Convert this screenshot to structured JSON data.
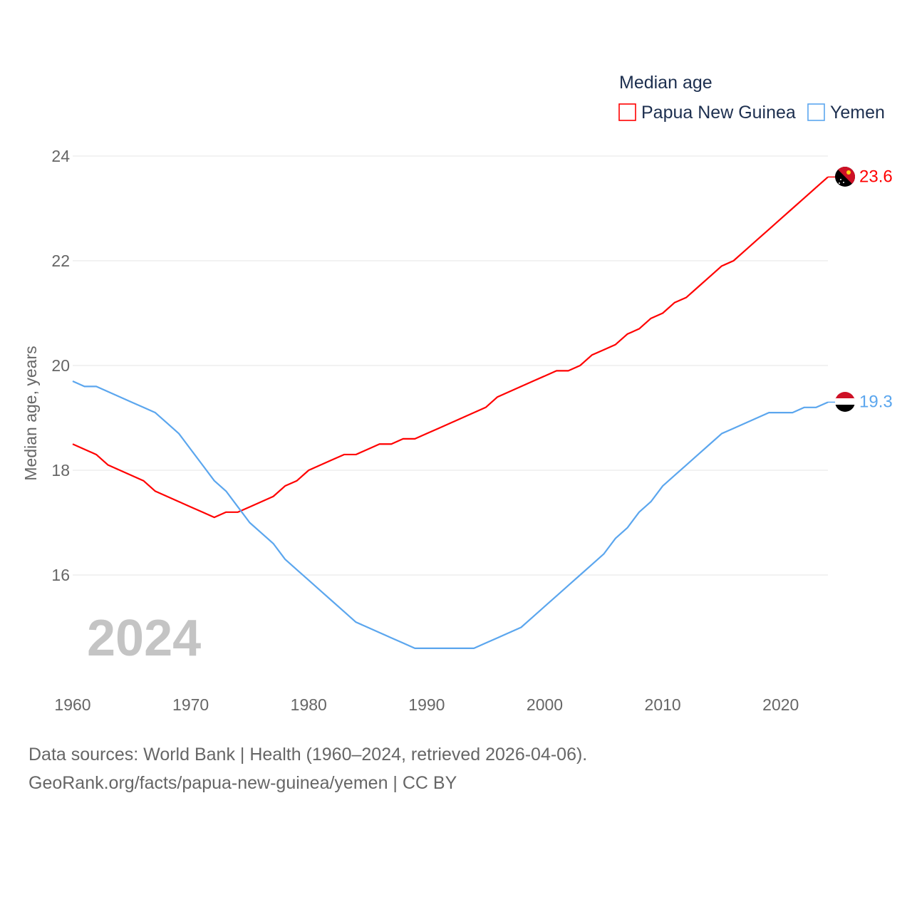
{
  "chart_data": {
    "type": "line",
    "title": "Median age",
    "xlabel": "",
    "ylabel": "Median age, years",
    "xlim": [
      1960,
      2024
    ],
    "ylim": [
      14,
      24.5
    ],
    "yticks": [
      16,
      18,
      20,
      22,
      24
    ],
    "xticks": [
      1960,
      1970,
      1980,
      1990,
      2000,
      2010,
      2020
    ],
    "grid": true,
    "legend_placement": "top-right",
    "year_watermark": "2024",
    "x": [
      1960,
      1961,
      1962,
      1963,
      1964,
      1965,
      1966,
      1967,
      1968,
      1969,
      1970,
      1971,
      1972,
      1973,
      1974,
      1975,
      1976,
      1977,
      1978,
      1979,
      1980,
      1981,
      1982,
      1983,
      1984,
      1985,
      1986,
      1987,
      1988,
      1989,
      1990,
      1991,
      1992,
      1993,
      1994,
      1995,
      1996,
      1997,
      1998,
      1999,
      2000,
      2001,
      2002,
      2003,
      2004,
      2005,
      2006,
      2007,
      2008,
      2009,
      2010,
      2011,
      2012,
      2013,
      2014,
      2015,
      2016,
      2017,
      2018,
      2019,
      2020,
      2021,
      2022,
      2023,
      2024
    ],
    "series": [
      {
        "name": "Papua New Guinea",
        "color": "#ff0000",
        "end_label": "23.6",
        "values": [
          18.5,
          18.4,
          18.3,
          18.1,
          18.0,
          17.9,
          17.8,
          17.6,
          17.5,
          17.4,
          17.3,
          17.2,
          17.1,
          17.2,
          17.2,
          17.3,
          17.4,
          17.5,
          17.7,
          17.8,
          18.0,
          18.1,
          18.2,
          18.3,
          18.3,
          18.4,
          18.5,
          18.5,
          18.6,
          18.6,
          18.7,
          18.8,
          18.9,
          19.0,
          19.1,
          19.2,
          19.4,
          19.5,
          19.6,
          19.7,
          19.8,
          19.9,
          19.9,
          20.0,
          20.2,
          20.3,
          20.4,
          20.6,
          20.7,
          20.9,
          21.0,
          21.2,
          21.3,
          21.5,
          21.7,
          21.9,
          22.0,
          22.2,
          22.4,
          22.6,
          22.8,
          23.0,
          23.2,
          23.4,
          23.6
        ]
      },
      {
        "name": "Yemen",
        "color": "#5ba6ee",
        "end_label": "19.3",
        "values": [
          19.7,
          19.6,
          19.6,
          19.5,
          19.4,
          19.3,
          19.2,
          19.1,
          18.9,
          18.7,
          18.4,
          18.1,
          17.8,
          17.6,
          17.3,
          17.0,
          16.8,
          16.6,
          16.3,
          16.1,
          15.9,
          15.7,
          15.5,
          15.3,
          15.1,
          15.0,
          14.9,
          14.8,
          14.7,
          14.6,
          14.6,
          14.6,
          14.6,
          14.6,
          14.6,
          14.7,
          14.8,
          14.9,
          15.0,
          15.2,
          15.4,
          15.6,
          15.8,
          16.0,
          16.2,
          16.4,
          16.7,
          16.9,
          17.2,
          17.4,
          17.7,
          17.9,
          18.1,
          18.3,
          18.5,
          18.7,
          18.8,
          18.9,
          19.0,
          19.1,
          19.1,
          19.1,
          19.2,
          19.2,
          19.3
        ]
      }
    ]
  },
  "footer": {
    "line1": "Data sources: World Bank | Health (1960–2024, retrieved 2026-04-06).",
    "line2": "GeoRank.org/facts/papua-new-guinea/yemen | CC BY"
  }
}
